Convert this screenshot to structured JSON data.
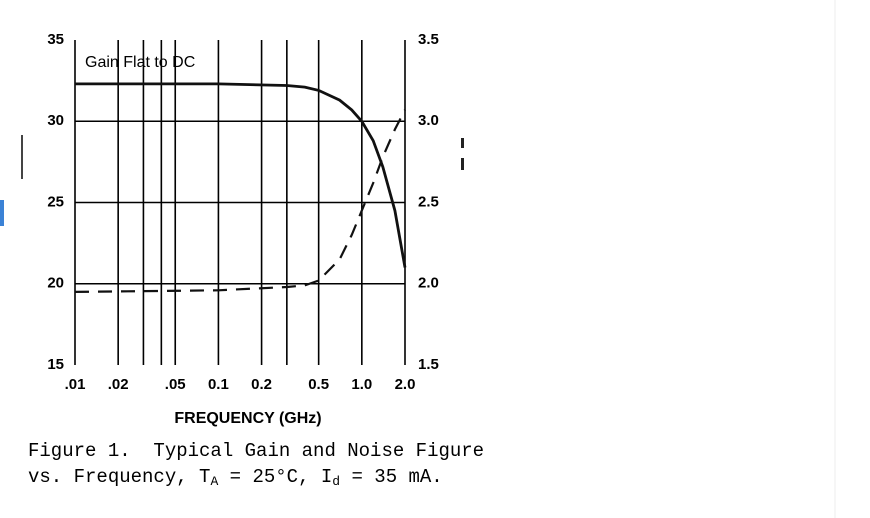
{
  "chart_data": {
    "type": "line",
    "annotation": "Gain Flat to DC",
    "x_label": "FREQUENCY (GHz)",
    "caption": {
      "line1": "Figure 1.  Typical Gain and Noise Figure",
      "line2_a": "vs. Frequency, T",
      "sub_a": "A",
      "line2_b": " = 25°C, I",
      "sub_b": "d",
      "line2_c": " = 35 mA."
    },
    "x": [
      0.01,
      0.1,
      0.3,
      0.4,
      0.5,
      0.7,
      0.85,
      1.0,
      1.2,
      1.4,
      1.7,
      2.0
    ],
    "series": [
      {
        "name": "Gain",
        "color": "#111111",
        "dash": false,
        "values": [
          32.3,
          32.3,
          32.2,
          32.1,
          31.9,
          31.3,
          30.7,
          30.0,
          28.8,
          27.2,
          24.5,
          21.0
        ]
      },
      {
        "name": "Noise Figure",
        "color": "#111111",
        "dash": true,
        "axis": "y2",
        "values": [
          1.95,
          1.96,
          1.98,
          1.99,
          2.02,
          2.15,
          2.3,
          2.45,
          2.62,
          2.78,
          2.95,
          3.07
        ]
      }
    ],
    "xlog": true,
    "xlim": [
      0.01,
      2.0
    ],
    "xticks": [
      {
        "value": 0.01,
        "label": ".01"
      },
      {
        "value": 0.02,
        "label": ".02"
      },
      {
        "value": 0.05,
        "label": ".05"
      },
      0.1,
      0.2,
      0.5,
      {
        "value": 1,
        "label": "1.0"
      },
      {
        "value": 2,
        "label": "2.0"
      }
    ],
    "x_minor_ticks": [
      0.03,
      0.04,
      0.3
    ],
    "ylim": [
      15,
      35
    ],
    "yticks": [
      15,
      20,
      25,
      30,
      35
    ],
    "y2lim": [
      1.5,
      3.5
    ],
    "y2ticks": [
      1.5,
      {
        "value": 2,
        "label": "2.0"
      },
      2.5,
      {
        "value": 3,
        "label": "3.0"
      },
      3.5
    ],
    "grid": true
  }
}
